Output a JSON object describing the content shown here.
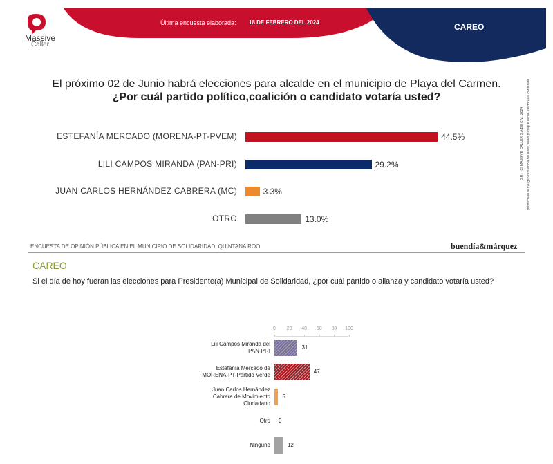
{
  "header": {
    "logo_top": "Massive",
    "logo_bottom": "Caller",
    "survey_label": "Última encuesta elaborada:",
    "survey_date": "18 DE FEBRERO DEL 2024",
    "section": "CAREO",
    "side_note_1": "D.R., (C) MASSIVE CALLER S.A DE C.V., 2024",
    "side_note_2": "producción al margen referencia del autor, salvo publique verde electoral al contenido."
  },
  "second_header": {
    "source": "ENCUESTA DE OPINIÓN PÚBLICA EN EL MUNICIPIO DE SOLIDARIDAD, QUINTANA ROO",
    "brand": "buendía&márquez",
    "section": "CAREO"
  },
  "chart_data": [
    {
      "type": "bar",
      "orientation": "horizontal",
      "title": "El próximo 02 de Junio habrá elecciones para alcalde en el municipio de  Playa del Carmen.",
      "subtitle": "¿Por cuál partido político,coalición o candidato votaría usted?",
      "categories": [
        "ESTEFANÍA MERCADO (MORENA-PT-PVEM)",
        "LILI CAMPOS MIRANDA (PAN-PRI)",
        "JUAN CARLOS HERNÁNDEZ CABRERA (MC)",
        "OTRO"
      ],
      "values": [
        44.5,
        29.2,
        3.3,
        13.0
      ],
      "value_labels": [
        "44.5%",
        "29.2%",
        "3.3%",
        "13.0%"
      ],
      "colors": [
        "#c0121f",
        "#0b2a68",
        "#ee8a2e",
        "#808080"
      ]
    },
    {
      "type": "bar",
      "orientation": "horizontal",
      "title": "Si el día de hoy fueran las elecciones para Presidente(a) Municipal de Solidaridad, ¿por cuál partido o alianza y candidato votaría usted?",
      "categories": [
        "Lili Campos Miranda del\nPAN-PRI",
        "Estefanía Mercado de\nMORENA-PT-Partido Verde",
        "Juan Carlos Hernández\nCabrera de Movimiento\nCiudadano",
        "Otro",
        "Ninguno"
      ],
      "values": [
        31,
        47,
        5,
        0,
        12
      ],
      "colors": [
        "#7b6fa3",
        "#b5151d",
        "#f0a050",
        "#888888",
        "#a3a3a3"
      ],
      "hatched": [
        true,
        true,
        false,
        false,
        false
      ],
      "xlim": [
        0,
        100
      ],
      "xticks": [
        0,
        20,
        40,
        60,
        80,
        100
      ]
    }
  ]
}
